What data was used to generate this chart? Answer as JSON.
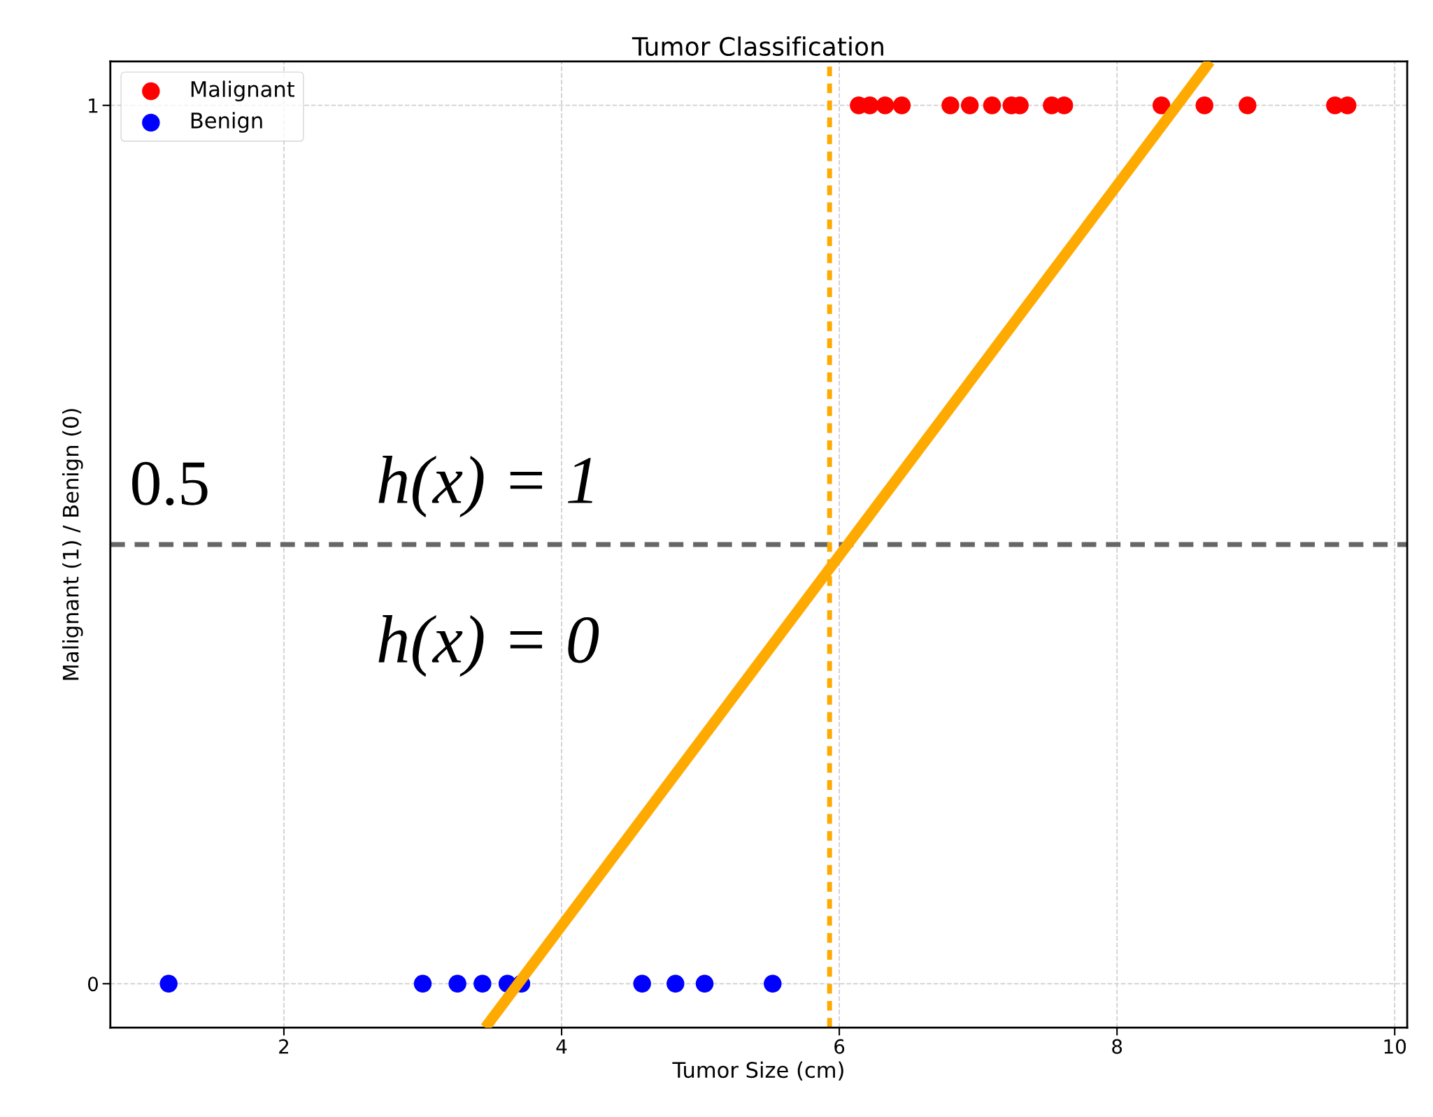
{
  "chart_data": {
    "type": "scatter",
    "title": "Tumor Classification",
    "xlabel": "Tumor Size (cm)",
    "ylabel": "Malignant (1) / Benign (0)",
    "series": [
      {
        "name": "Malignant",
        "color": "#ff0000",
        "x": [
          6.14,
          6.22,
          6.33,
          6.45,
          6.8,
          6.94,
          7.1,
          7.24,
          7.3,
          7.53,
          7.62,
          8.32,
          8.63,
          8.94,
          9.57,
          9.66
        ],
        "values": [
          1,
          1,
          1,
          1,
          1,
          1,
          1,
          1,
          1,
          1,
          1,
          1,
          1,
          1,
          1,
          1
        ]
      },
      {
        "name": "Benign",
        "color": "#0000ff",
        "x": [
          1.17,
          3.0,
          3.25,
          3.43,
          3.61,
          3.71,
          4.58,
          4.82,
          5.03,
          5.52
        ],
        "values": [
          0,
          0,
          0,
          0,
          0,
          0,
          0,
          0,
          0,
          0
        ]
      },
      {
        "type": "line",
        "marker": "none",
        "color": "#ffaa00",
        "x": [
          3.45,
          8.67
        ],
        "values": [
          -0.05,
          1.05
        ]
      }
    ],
    "ref_lines": [
      {
        "axis": "y",
        "value": 0.5,
        "label": "0.5",
        "color": "#666666",
        "line_style": "dashed"
      },
      {
        "axis": "x",
        "value": 5.93,
        "color": "#ffaa00",
        "line_style": "dotted"
      }
    ],
    "annotations": [
      "h(x) = 1",
      "h(x) = 0"
    ],
    "xlim": [
      0.75,
      10.09
    ],
    "ylim": [
      -0.05,
      1.05
    ],
    "xticks": [
      2,
      4,
      6,
      8,
      10
    ],
    "yticks": [
      0,
      1
    ],
    "grid": true,
    "legend": "top left",
    "marker": "circle"
  }
}
